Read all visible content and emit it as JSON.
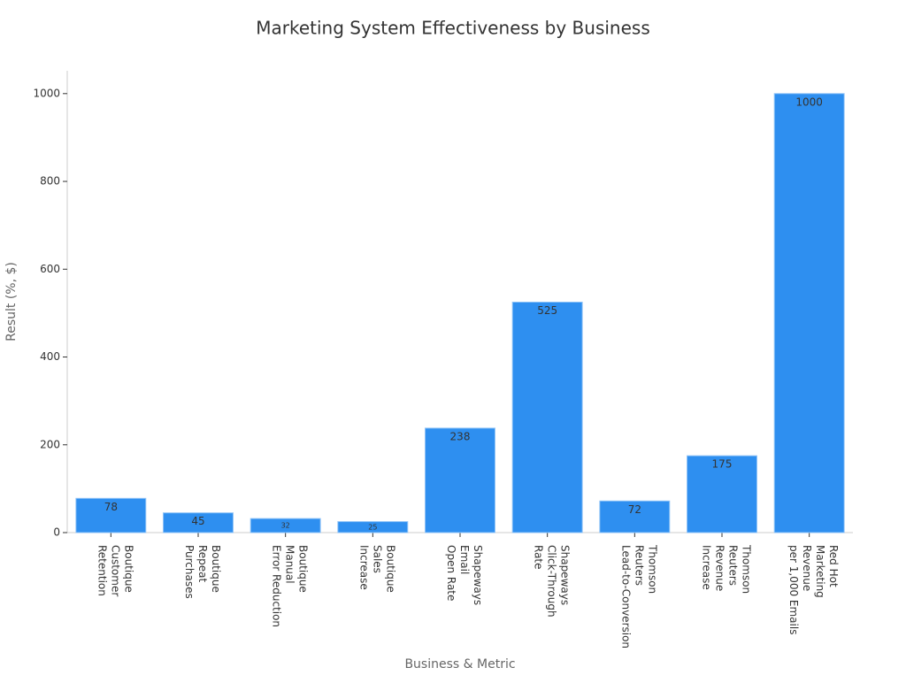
{
  "chart_data": {
    "type": "bar",
    "title": "Marketing System Effectiveness by Business",
    "x_label": "Business & Metric",
    "y_label": "Result (%, $)",
    "categories": [
      "Boutique\nCustomer\nRetention",
      "Boutique\nRepeat\nPurchases",
      "Boutique\nManual\nError Reduction",
      "Boutique\nSales\nIncrease",
      "Shapeways\nEmail\nOpen Rate",
      "Shapeways\nClick-Through\nRate",
      "Thomson\nReuters\nLead-to-Conversion",
      "Thomson\nReuters\nRevenue\nIncrease",
      "Red Hot\nMarketing\nRevenue\nper 1,000 Emails"
    ],
    "values": [
      78,
      45,
      32,
      25,
      238,
      525,
      72,
      175,
      1000
    ],
    "color": "#2e8ff0",
    "ylim": [
      0,
      1052
    ],
    "yticks": [
      0,
      200,
      400,
      600,
      800,
      1000
    ],
    "grid": false
  }
}
